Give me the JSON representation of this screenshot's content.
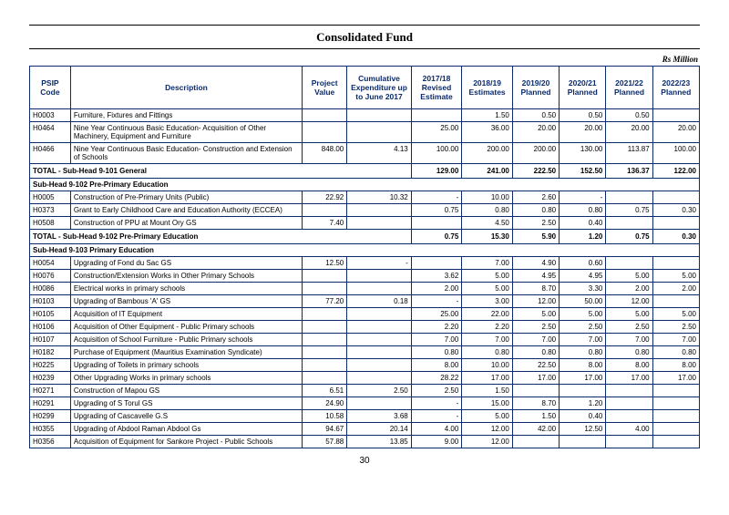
{
  "title": "Consolidated Fund",
  "unit": "Rs Million",
  "pageNumber": "30",
  "headers": {
    "code": "PSIP Code",
    "desc": "Description",
    "pv": "Project Value",
    "cum": "Cumulative Expenditure up to June 2017",
    "est": "2017/18 Revised Estimate",
    "e19": "2018/19 Estimates",
    "p20": "2019/20 Planned",
    "p21": "2020/21 Planned",
    "p22": "2021/22 Planned",
    "p23": "2022/23 Planned"
  },
  "rows": [
    {
      "t": "d",
      "code": "H0003",
      "desc": "Furniture, Fixtures and Fittings",
      "pv": "",
      "cum": "",
      "est": "",
      "e19": "1.50",
      "p20": "0.50",
      "p21": "0.50",
      "p22": "0.50",
      "p23": ""
    },
    {
      "t": "d",
      "code": "H0464",
      "desc": "Nine Year Continuous Basic Education- Acquisition of Other Machinery, Equipment and Furniture",
      "pv": "",
      "cum": "",
      "est": "25.00",
      "e19": "36.00",
      "p20": "20.00",
      "p21": "20.00",
      "p22": "20.00",
      "p23": "20.00"
    },
    {
      "t": "d",
      "code": "H0466",
      "desc": "Nine Year Continuous Basic Education- Construction and Extension of Schools",
      "pv": "848.00",
      "cum": "4.13",
      "est": "100.00",
      "e19": "200.00",
      "p20": "200.00",
      "p21": "130.00",
      "p22": "113.87",
      "p23": "100.00"
    },
    {
      "t": "t",
      "label": "TOTAL - Sub-Head 9-101 General",
      "est": "129.00",
      "e19": "241.00",
      "p20": "222.50",
      "p21": "152.50",
      "p22": "136.37",
      "p23": "122.00"
    },
    {
      "t": "s",
      "label": "Sub-Head 9-102 Pre-Primary Education"
    },
    {
      "t": "d",
      "code": "H0005",
      "desc": "Construction of Pre-Primary Units (Public)",
      "pv": "22.92",
      "cum": "10.32",
      "est": "-",
      "e19": "10.00",
      "p20": "2.60",
      "p21": "-",
      "p22": "",
      "p23": ""
    },
    {
      "t": "d",
      "code": "H0373",
      "desc": "Grant to Early Childhood Care and Education Authority (ECCEA)",
      "pv": "",
      "cum": "",
      "est": "0.75",
      "e19": "0.80",
      "p20": "0.80",
      "p21": "0.80",
      "p22": "0.75",
      "p23": "0.30"
    },
    {
      "t": "d",
      "code": "H0508",
      "desc": "Construction of PPU at Mount Ory GS",
      "pv": "7.40",
      "cum": "",
      "est": "",
      "e19": "4.50",
      "p20": "2.50",
      "p21": "0.40",
      "p22": "",
      "p23": ""
    },
    {
      "t": "t",
      "label": "TOTAL - Sub-Head 9-102 Pre-Primary Education",
      "est": "0.75",
      "e19": "15.30",
      "p20": "5.90",
      "p21": "1.20",
      "p22": "0.75",
      "p23": "0.30"
    },
    {
      "t": "s",
      "label": "Sub-Head 9-103 Primary Education"
    },
    {
      "t": "d",
      "code": "H0054",
      "desc": "Upgrading of Fond du Sac GS",
      "pv": "12.50",
      "cum": "-",
      "est": "",
      "e19": "7.00",
      "p20": "4.90",
      "p21": "0.60",
      "p22": "",
      "p23": ""
    },
    {
      "t": "d",
      "code": "H0076",
      "desc": "Construction/Extension Works in Other Primary Schools",
      "pv": "",
      "cum": "",
      "est": "3.62",
      "e19": "5.00",
      "p20": "4.95",
      "p21": "4.95",
      "p22": "5.00",
      "p23": "5.00"
    },
    {
      "t": "d",
      "code": "H0086",
      "desc": "Electrical works in primary schools",
      "pv": "",
      "cum": "",
      "est": "2.00",
      "e19": "5.00",
      "p20": "8.70",
      "p21": "3.30",
      "p22": "2.00",
      "p23": "2.00"
    },
    {
      "t": "d",
      "code": "H0103",
      "desc": "Upgrading of Bambous 'A' GS",
      "pv": "77.20",
      "cum": "0.18",
      "est": "-",
      "e19": "3.00",
      "p20": "12.00",
      "p21": "50.00",
      "p22": "12.00",
      "p23": ""
    },
    {
      "t": "d",
      "code": "H0105",
      "desc": "Acquisition of IT Equipment",
      "pv": "",
      "cum": "",
      "est": "25.00",
      "e19": "22.00",
      "p20": "5.00",
      "p21": "5.00",
      "p22": "5.00",
      "p23": "5.00"
    },
    {
      "t": "d",
      "code": "H0106",
      "desc": "Acquisition of Other Equipment - Public Primary schools",
      "pv": "",
      "cum": "",
      "est": "2.20",
      "e19": "2.20",
      "p20": "2.50",
      "p21": "2.50",
      "p22": "2.50",
      "p23": "2.50"
    },
    {
      "t": "d",
      "code": "H0107",
      "desc": "Acquisition of School Furniture - Public Primary schools",
      "pv": "",
      "cum": "",
      "est": "7.00",
      "e19": "7.00",
      "p20": "7.00",
      "p21": "7.00",
      "p22": "7.00",
      "p23": "7.00"
    },
    {
      "t": "d",
      "code": "H0182",
      "desc": "Purchase of Equipment (Mauritius Examination Syndicate)",
      "pv": "",
      "cum": "",
      "est": "0.80",
      "e19": "0.80",
      "p20": "0.80",
      "p21": "0.80",
      "p22": "0.80",
      "p23": "0.80"
    },
    {
      "t": "d",
      "code": "H0225",
      "desc": "Upgrading of Toilets in primary schools",
      "pv": "",
      "cum": "",
      "est": "8.00",
      "e19": "10.00",
      "p20": "22.50",
      "p21": "8.00",
      "p22": "8.00",
      "p23": "8.00"
    },
    {
      "t": "d",
      "code": "H0239",
      "desc": "Other Upgrading Works in primary schools",
      "pv": "",
      "cum": "",
      "est": "28.22",
      "e19": "17.00",
      "p20": "17.00",
      "p21": "17.00",
      "p22": "17.00",
      "p23": "17.00"
    },
    {
      "t": "d",
      "code": "H0271",
      "desc": "Construction of Mapou GS",
      "pv": "6.51",
      "cum": "2.50",
      "est": "2.50",
      "e19": "1.50",
      "p20": "",
      "p21": "",
      "p22": "",
      "p23": ""
    },
    {
      "t": "d",
      "code": "H0291",
      "desc": "Upgrading of S Torul GS",
      "pv": "24.90",
      "cum": "",
      "est": "-",
      "e19": "15.00",
      "p20": "8.70",
      "p21": "1.20",
      "p22": "",
      "p23": ""
    },
    {
      "t": "d",
      "code": "H0299",
      "desc": "Upgrading of Cascavelle G.S",
      "pv": "10.58",
      "cum": "3.68",
      "est": "-",
      "e19": "5.00",
      "p20": "1.50",
      "p21": "0.40",
      "p22": "",
      "p23": ""
    },
    {
      "t": "d",
      "code": "H0355",
      "desc": "Upgrading of Abdool Raman Abdool Gs",
      "pv": "94.67",
      "cum": "20.14",
      "est": "4.00",
      "e19": "12.00",
      "p20": "42.00",
      "p21": "12.50",
      "p22": "4.00",
      "p23": ""
    },
    {
      "t": "d",
      "code": "H0356",
      "desc": "Acquisition of Equipment for Sankore Project - Public Schools",
      "pv": "57.88",
      "cum": "13.85",
      "est": "9.00",
      "e19": "12.00",
      "p20": "",
      "p21": "",
      "p22": "",
      "p23": ""
    }
  ]
}
